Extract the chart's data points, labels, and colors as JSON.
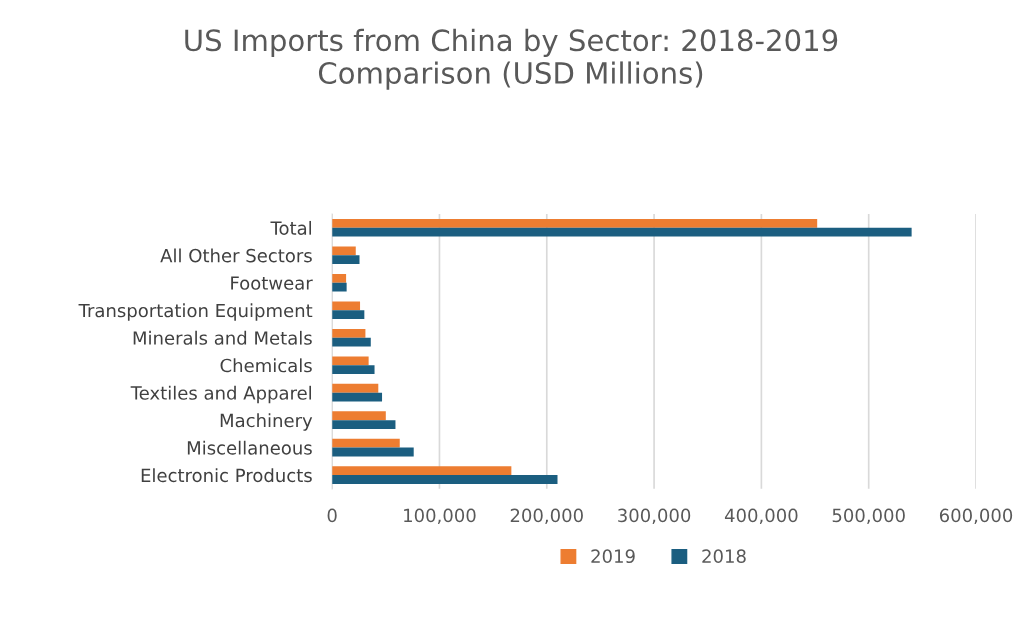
{
  "chart_data": {
    "type": "bar",
    "orientation": "horizontal",
    "title": "US Imports from China by Sector: 2018-2019\nComparison (USD Millions)",
    "categories": [
      "Total",
      "All Other Sectors",
      "Footwear",
      "Transportation Equipment",
      "Minerals and Metals",
      "Chemicals",
      "Textiles and Apparel",
      "Machinery",
      "Miscellaneous",
      "Electronic Products"
    ],
    "series": [
      {
        "name": "2019",
        "color": "#ed7d31",
        "values": [
          452000,
          22000,
          13000,
          26000,
          31000,
          34000,
          43000,
          50000,
          63000,
          167000
        ]
      },
      {
        "name": "2018",
        "color": "#1b5e80",
        "values": [
          540000,
          25500,
          13500,
          30000,
          36000,
          39500,
          46500,
          59000,
          76000,
          210000
        ]
      }
    ],
    "xlim": [
      0,
      600000
    ],
    "xticks": [
      {
        "value": 0,
        "label": "0"
      },
      {
        "value": 100000,
        "label": "100,000"
      },
      {
        "value": 200000,
        "label": "200,000"
      },
      {
        "value": 300000,
        "label": "300,000"
      },
      {
        "value": 400000,
        "label": "400,000"
      },
      {
        "value": 500000,
        "label": "500,000"
      },
      {
        "value": 600000,
        "label": "600,000"
      }
    ],
    "grid": "x",
    "legend": "bottom"
  }
}
